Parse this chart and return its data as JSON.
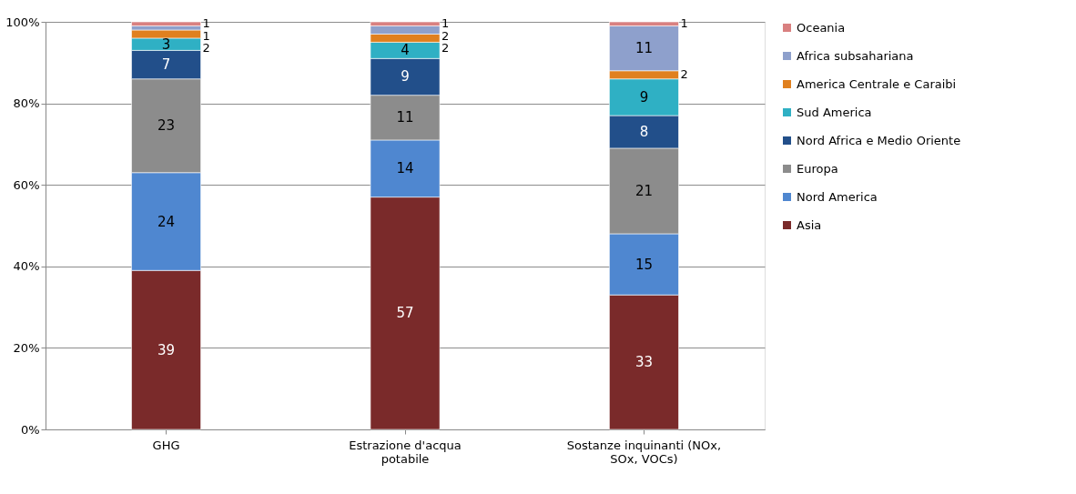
{
  "chart_data": {
    "type": "bar",
    "stacked": true,
    "data_labels": true,
    "legend": "right",
    "grid": "y",
    "categories": [
      "GHG",
      "Estrazione d'acqua potabile",
      "Sostanze inquinanti (NOx, SOx, VOCs)"
    ],
    "ylim": [
      0,
      100
    ],
    "yticks": [
      {
        "value": 0,
        "label": "0%"
      },
      {
        "value": 20,
        "label": "20%"
      },
      {
        "value": 40,
        "label": "40%"
      },
      {
        "value": 60,
        "label": "60%"
      },
      {
        "value": 80,
        "label": "80%"
      },
      {
        "value": 100,
        "label": "100%"
      }
    ],
    "series": [
      {
        "name": "Asia",
        "color": "#7a2a2a",
        "values": [
          39,
          57,
          33
        ]
      },
      {
        "name": "Nord America",
        "color": "#4f87d0",
        "values": [
          24,
          14,
          15
        ]
      },
      {
        "name": "Europa",
        "color": "#8c8c8c",
        "values": [
          23,
          11,
          21
        ]
      },
      {
        "name": "Nord Africa e Medio Oriente",
        "color": "#224f8a",
        "values": [
          7,
          9,
          8
        ]
      },
      {
        "name": "Sud America",
        "color": "#2fb0c4",
        "values": [
          3,
          4,
          9
        ]
      },
      {
        "name": "America Centrale e Caraibi",
        "color": "#e0801f",
        "values": [
          2,
          2,
          2
        ]
      },
      {
        "name": "Africa subsahariana",
        "color": "#8ea0cc",
        "values": [
          1,
          2,
          11
        ]
      },
      {
        "name": "Oceania",
        "color": "#d98080",
        "values": [
          1,
          1,
          1
        ]
      }
    ]
  }
}
